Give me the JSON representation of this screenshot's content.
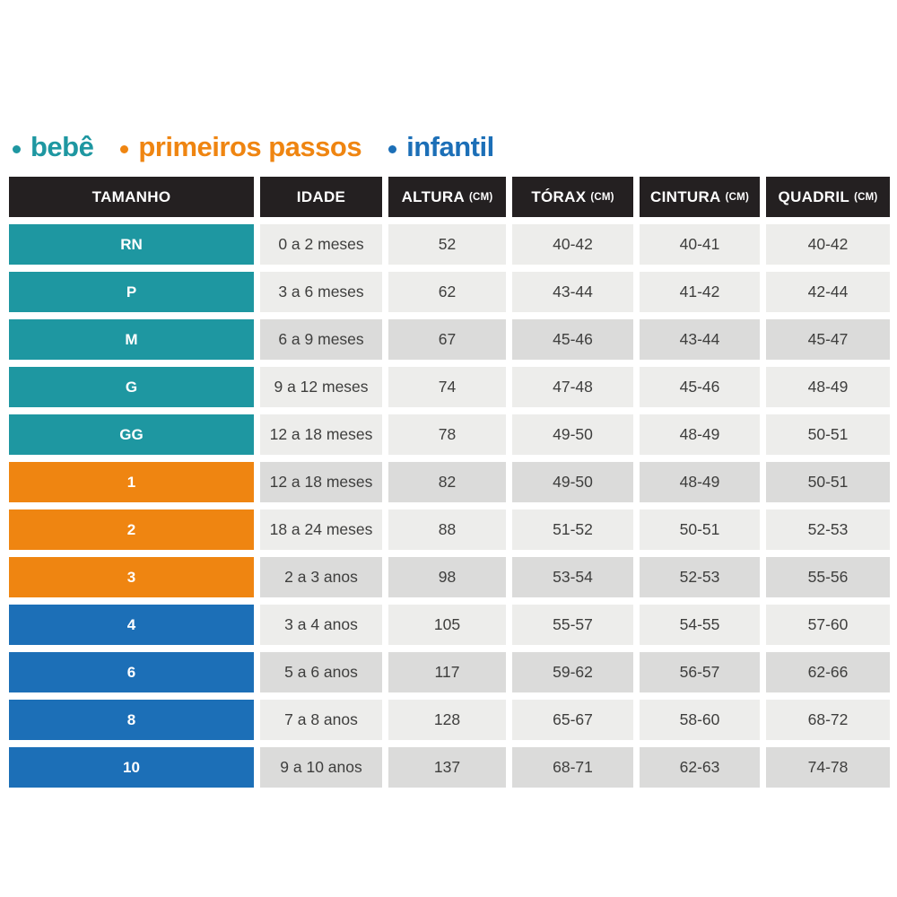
{
  "legend": {
    "items": [
      {
        "label": "bebê",
        "group": "bebe"
      },
      {
        "label": "primeiros passos",
        "group": "primeiros_passos"
      },
      {
        "label": "infantil",
        "group": "infantil"
      }
    ]
  },
  "colors": {
    "bebe": "#1E97A1",
    "primeiros_passos": "#EF8511",
    "infantil": "#1C6FB7",
    "header_bg": "#242021",
    "header_text": "#FFFFFF",
    "row_light": "#EDEDEB",
    "row_dark": "#DBDBDA",
    "cell_text": "#3E3E3D",
    "size_text": "#FFFFFF",
    "background": "#FFFFFF"
  },
  "chart_data": {
    "type": "table",
    "title": "",
    "legend": [
      "bebê",
      "primeiros passos",
      "infantil"
    ],
    "columns": [
      {
        "label": "TAMANHO",
        "unit": ""
      },
      {
        "label": "IDADE",
        "unit": ""
      },
      {
        "label": "ALTURA",
        "unit": "(CM)"
      },
      {
        "label": "TÓRAX",
        "unit": "(CM)"
      },
      {
        "label": "CINTURA",
        "unit": "(CM)"
      },
      {
        "label": "QUADRIL",
        "unit": "(CM)"
      }
    ],
    "rows": [
      {
        "size": "RN",
        "group": "bebe",
        "shade": "light",
        "values": [
          "0 a 2 meses",
          "52",
          "40-42",
          "40-41",
          "40-42"
        ]
      },
      {
        "size": "P",
        "group": "bebe",
        "shade": "light",
        "values": [
          "3 a 6 meses",
          "62",
          "43-44",
          "41-42",
          "42-44"
        ]
      },
      {
        "size": "M",
        "group": "bebe",
        "shade": "dark",
        "values": [
          "6 a 9 meses",
          "67",
          "45-46",
          "43-44",
          "45-47"
        ]
      },
      {
        "size": "G",
        "group": "bebe",
        "shade": "light",
        "values": [
          "9 a 12 meses",
          "74",
          "47-48",
          "45-46",
          "48-49"
        ]
      },
      {
        "size": "GG",
        "group": "bebe",
        "shade": "light",
        "values": [
          "12 a 18 meses",
          "78",
          "49-50",
          "48-49",
          "50-51"
        ]
      },
      {
        "size": "1",
        "group": "primeiros_passos",
        "shade": "dark",
        "values": [
          "12 a 18 meses",
          "82",
          "49-50",
          "48-49",
          "50-51"
        ]
      },
      {
        "size": "2",
        "group": "primeiros_passos",
        "shade": "light",
        "values": [
          "18 a 24 meses",
          "88",
          "51-52",
          "50-51",
          "52-53"
        ]
      },
      {
        "size": "3",
        "group": "primeiros_passos",
        "shade": "dark",
        "values": [
          "2 a 3 anos",
          "98",
          "53-54",
          "52-53",
          "55-56"
        ]
      },
      {
        "size": "4",
        "group": "infantil",
        "shade": "light",
        "values": [
          "3 a 4 anos",
          "105",
          "55-57",
          "54-55",
          "57-60"
        ]
      },
      {
        "size": "6",
        "group": "infantil",
        "shade": "dark",
        "values": [
          "5 a 6 anos",
          "117",
          "59-62",
          "56-57",
          "62-66"
        ]
      },
      {
        "size": "8",
        "group": "infantil",
        "shade": "light",
        "values": [
          "7 a 8 anos",
          "128",
          "65-67",
          "58-60",
          "68-72"
        ]
      },
      {
        "size": "10",
        "group": "infantil",
        "shade": "dark",
        "values": [
          "9 a 10 anos",
          "137",
          "68-71",
          "62-63",
          "74-78"
        ]
      }
    ]
  }
}
